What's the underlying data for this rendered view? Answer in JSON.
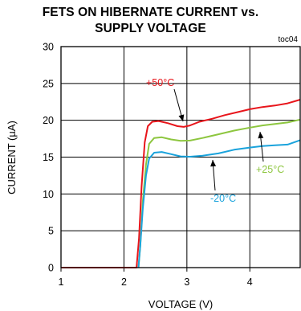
{
  "chart_data": {
    "type": "line",
    "title_lines": [
      "FETS ON HIBERNATE CURRENT vs.",
      "SUPPLY VOLTAGE"
    ],
    "figure_id": "toc04",
    "xlabel": "VOLTAGE (V)",
    "ylabel": "CURRENT (µA)",
    "xlim": [
      1,
      4.8
    ],
    "ylim": [
      0,
      30
    ],
    "xticks": [
      1,
      2,
      3,
      4
    ],
    "yticks": [
      0,
      5,
      10,
      15,
      20,
      25,
      30
    ],
    "grid": true,
    "series": [
      {
        "name": "+50°C",
        "color": "#e8151b",
        "points": [
          [
            1.0,
            0
          ],
          [
            2.0,
            0
          ],
          [
            2.2,
            0
          ],
          [
            2.24,
            4
          ],
          [
            2.28,
            11
          ],
          [
            2.33,
            17
          ],
          [
            2.38,
            19.2
          ],
          [
            2.45,
            19.8
          ],
          [
            2.55,
            19.9
          ],
          [
            2.7,
            19.6
          ],
          [
            2.85,
            19.2
          ],
          [
            2.95,
            19.1
          ],
          [
            3.05,
            19.3
          ],
          [
            3.2,
            19.8
          ],
          [
            3.4,
            20.2
          ],
          [
            3.6,
            20.7
          ],
          [
            3.8,
            21.1
          ],
          [
            4.0,
            21.5
          ],
          [
            4.2,
            21.8
          ],
          [
            4.4,
            22.0
          ],
          [
            4.6,
            22.3
          ],
          [
            4.8,
            22.8
          ]
        ]
      },
      {
        "name": "+25°C",
        "color": "#8dc63f",
        "points": [
          [
            2.23,
            0
          ],
          [
            2.26,
            3
          ],
          [
            2.3,
            9
          ],
          [
            2.35,
            14
          ],
          [
            2.4,
            16.8
          ],
          [
            2.48,
            17.6
          ],
          [
            2.6,
            17.7
          ],
          [
            2.75,
            17.4
          ],
          [
            2.9,
            17.2
          ],
          [
            3.05,
            17.25
          ],
          [
            3.25,
            17.6
          ],
          [
            3.5,
            18.1
          ],
          [
            3.75,
            18.6
          ],
          [
            4.0,
            19.0
          ],
          [
            4.2,
            19.3
          ],
          [
            4.4,
            19.5
          ],
          [
            4.6,
            19.7
          ],
          [
            4.8,
            20.1
          ]
        ]
      },
      {
        "name": "-20°C",
        "color": "#1aa3dc",
        "points": [
          [
            2.23,
            0
          ],
          [
            2.26,
            3
          ],
          [
            2.3,
            8
          ],
          [
            2.35,
            12.5
          ],
          [
            2.4,
            14.8
          ],
          [
            2.48,
            15.6
          ],
          [
            2.6,
            15.7
          ],
          [
            2.75,
            15.4
          ],
          [
            2.9,
            15.1
          ],
          [
            3.05,
            15.05
          ],
          [
            3.25,
            15.2
          ],
          [
            3.5,
            15.5
          ],
          [
            3.75,
            16.0
          ],
          [
            4.0,
            16.3
          ],
          [
            4.2,
            16.5
          ],
          [
            4.4,
            16.6
          ],
          [
            4.6,
            16.7
          ],
          [
            4.8,
            17.3
          ]
        ]
      }
    ],
    "annotations": [
      {
        "text": "+50°C",
        "color": "#e8151b",
        "arrow_to": [
          2.93,
          19.2
        ]
      },
      {
        "text": "+25°C",
        "color": "#8dc63f",
        "arrow_to": [
          4.12,
          19.1
        ]
      },
      {
        "text": "-20°C",
        "color": "#1aa3dc",
        "arrow_to": [
          3.42,
          15.5
        ]
      }
    ]
  }
}
